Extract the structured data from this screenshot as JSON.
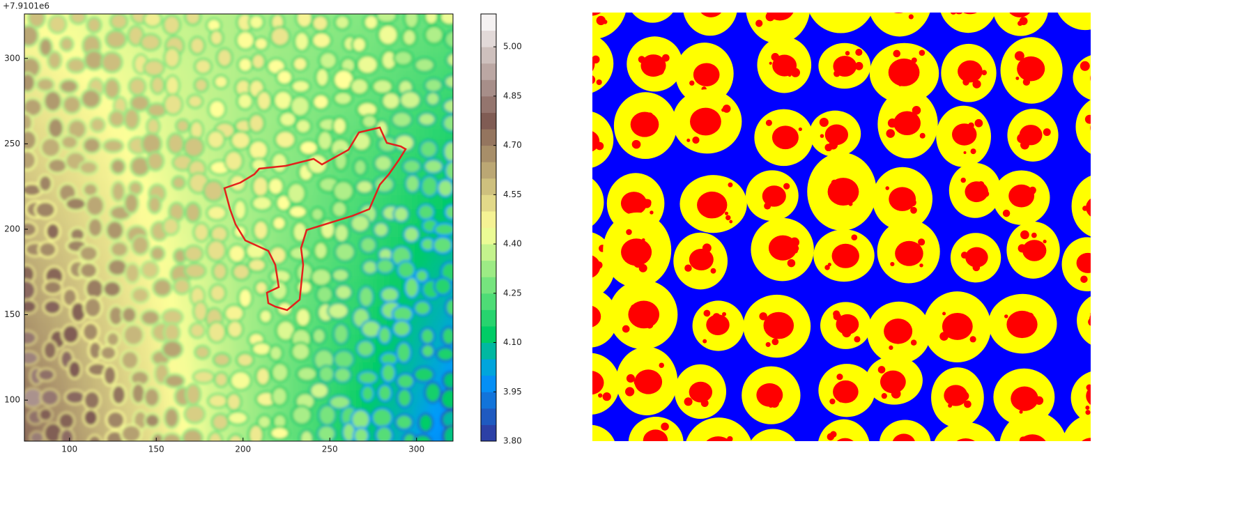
{
  "chart_data": [
    {
      "type": "heatmap",
      "offset_label": "+7.9101e6",
      "xlim": [
        74,
        321
      ],
      "ylim": [
        76,
        326
      ],
      "xticks": [
        100,
        150,
        200,
        250,
        300
      ],
      "yticks": [
        100,
        150,
        200,
        250,
        300
      ],
      "colormap": "terrain",
      "outline_color": "#e3211c",
      "colorbar": {
        "lim": [
          3.8,
          5.1
        ],
        "ticks": [
          {
            "value": 3.8,
            "label": "3.80"
          },
          {
            "value": 3.95,
            "label": "3.95"
          },
          {
            "value": 4.1,
            "label": "4.10"
          },
          {
            "value": 4.25,
            "label": "4.25"
          },
          {
            "value": 4.4,
            "label": "4.40"
          },
          {
            "value": 4.55,
            "label": "4.55"
          },
          {
            "value": 4.7,
            "label": "4.70"
          },
          {
            "value": 4.85,
            "label": "4.85"
          },
          {
            "value": 5,
            "label": "5.00"
          }
        ]
      }
    },
    {
      "type": "classification",
      "colors": [
        "#0000ff",
        "#ffff00",
        "#ff0000"
      ]
    }
  ]
}
